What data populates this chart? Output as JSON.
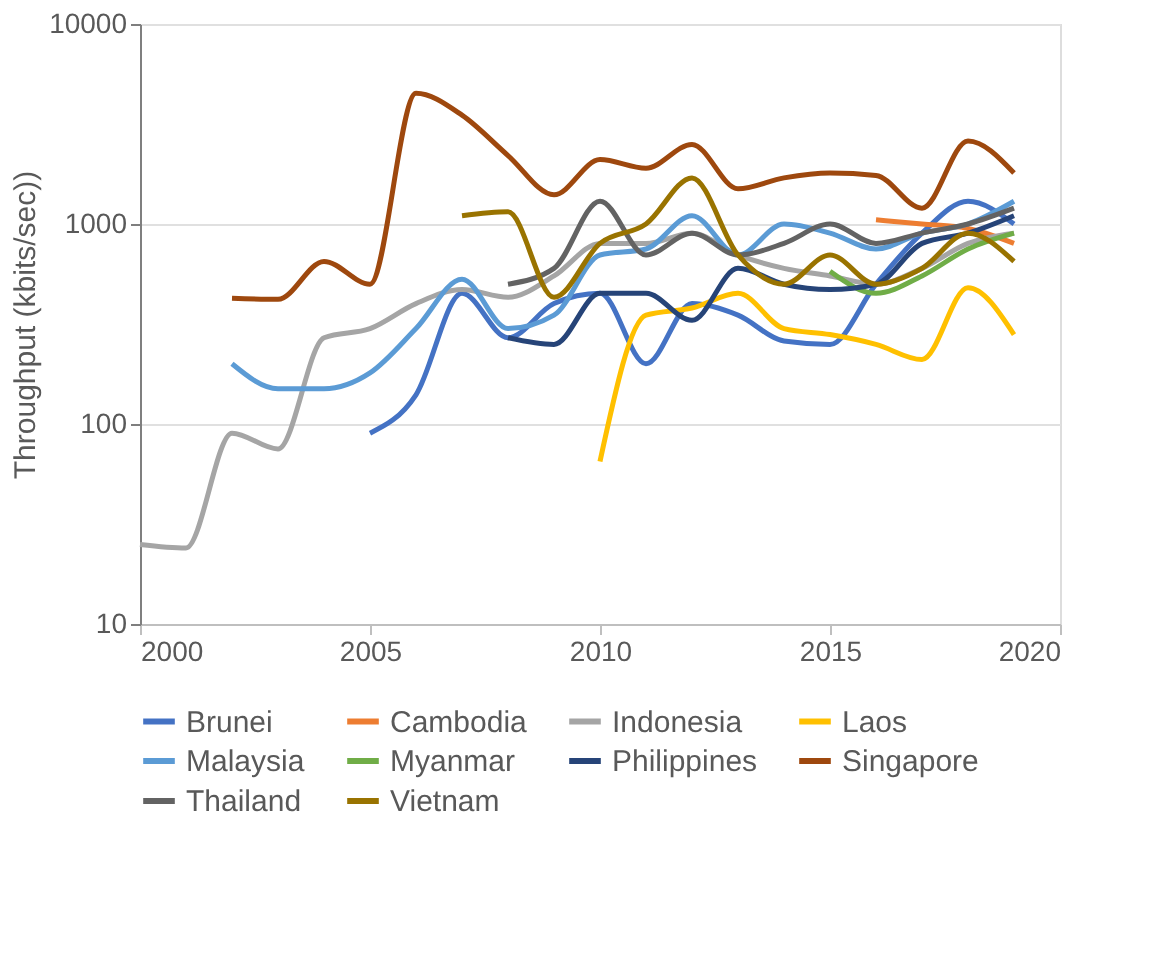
{
  "chart_data": {
    "type": "line",
    "ylabel": "Throughput (kbits/sec))",
    "log": "y",
    "xlim": [
      2000,
      2020
    ],
    "xticks": [
      2000,
      2005,
      2010,
      2015,
      2020
    ],
    "ylim": [
      10,
      10000
    ],
    "yticks": [
      10,
      100,
      1000,
      10000
    ],
    "grid": "y",
    "legend": "bottom",
    "marker": "none",
    "line_style": "solid",
    "series": [
      {
        "name": "Brunei",
        "color": "#4472c4",
        "x": [
          2005,
          2006,
          2007,
          2008,
          2009,
          2010,
          2011,
          2012,
          2013,
          2014,
          2015,
          2016,
          2017,
          2018,
          2019
        ],
        "values": [
          90,
          140,
          450,
          270,
          400,
          450,
          200,
          400,
          350,
          260,
          250,
          500,
          900,
          1300,
          1000
        ]
      },
      {
        "name": "Cambodia",
        "color": "#ed7d31",
        "x": [
          2016,
          2017,
          2018,
          2019
        ],
        "values": [
          1050,
          1000,
          950,
          800
        ]
      },
      {
        "name": "Indonesia",
        "color": "#a5a5a5",
        "x": [
          2000,
          2001,
          2002,
          2003,
          2004,
          2005,
          2006,
          2007,
          2008,
          2009,
          2010,
          2011,
          2012,
          2013,
          2014,
          2015,
          2016,
          2017,
          2018,
          2019
        ],
        "values": [
          25,
          24,
          90,
          75,
          270,
          300,
          400,
          470,
          430,
          550,
          800,
          800,
          900,
          700,
          600,
          550,
          500,
          600,
          800,
          900
        ]
      },
      {
        "name": "Laos",
        "color": "#ffc000",
        "x": [
          2010,
          2011,
          2012,
          2013,
          2014,
          2015,
          2016,
          2017,
          2018,
          2019
        ],
        "values": [
          65,
          350,
          380,
          450,
          300,
          280,
          250,
          210,
          480,
          280
        ]
      },
      {
        "name": "Malaysia",
        "color": "#5b9bd5",
        "x": [
          2002,
          2003,
          2004,
          2005,
          2006,
          2007,
          2008,
          2009,
          2010,
          2011,
          2012,
          2013,
          2014,
          2015,
          2016,
          2017,
          2018,
          2019
        ],
        "values": [
          200,
          150,
          150,
          180,
          300,
          530,
          300,
          350,
          700,
          750,
          1100,
          700,
          1000,
          900,
          750,
          900,
          1000,
          1300
        ]
      },
      {
        "name": "Myanmar",
        "color": "#70ad47",
        "x": [
          2015,
          2016,
          2017,
          2018,
          2019
        ],
        "values": [
          580,
          450,
          550,
          750,
          900
        ]
      },
      {
        "name": "Philippines",
        "color": "#264478",
        "x": [
          2008,
          2009,
          2010,
          2011,
          2012,
          2013,
          2014,
          2015,
          2016,
          2017,
          2018,
          2019
        ],
        "values": [
          270,
          250,
          450,
          450,
          330,
          600,
          500,
          470,
          500,
          800,
          900,
          1100
        ]
      },
      {
        "name": "Singapore",
        "color": "#9e480e",
        "x": [
          2002,
          2003,
          2004,
          2005,
          2006,
          2007,
          2008,
          2009,
          2010,
          2011,
          2012,
          2013,
          2014,
          2015,
          2016,
          2017,
          2018,
          2019
        ],
        "values": [
          425,
          420,
          650,
          500,
          4500,
          3500,
          2200,
          1400,
          2100,
          1900,
          2500,
          1500,
          1700,
          1800,
          1750,
          1200,
          2600,
          1800
        ]
      },
      {
        "name": "Thailand",
        "color": "#636363",
        "x": [
          2008,
          2009,
          2010,
          2011,
          2012,
          2013,
          2014,
          2015,
          2016,
          2017,
          2018,
          2019
        ],
        "values": [
          500,
          600,
          1300,
          700,
          900,
          700,
          800,
          1000,
          800,
          900,
          1000,
          1200
        ]
      },
      {
        "name": "Vietnam",
        "color": "#997300",
        "x": [
          2007,
          2008,
          2009,
          2010,
          2011,
          2012,
          2013,
          2014,
          2015,
          2016,
          2017,
          2018,
          2019
        ],
        "values": [
          1100,
          1150,
          430,
          800,
          1000,
          1700,
          700,
          500,
          700,
          500,
          600,
          900,
          650
        ]
      }
    ]
  }
}
